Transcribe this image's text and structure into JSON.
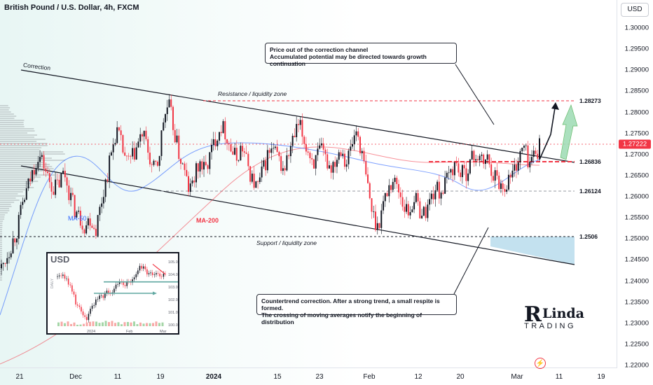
{
  "header": {
    "title": "British Pound / U.S. Dollar, 4h, FXCM"
  },
  "currency_button": "USD",
  "annotations": {
    "top_line1": "Price out of the correction channel",
    "top_line2": "Accumulated potential may be directed towards growth continuation",
    "bottom_line1": "Countertrend correction. After a strong trend, a small respite is formed.",
    "bottom_line2": "The crossing of moving averages notify the beginning of distribution",
    "correction_label": "Correction",
    "resistance_label": "Resistance / liquidity zone",
    "support_label": "Support / liquidity zone",
    "ma50_label": "MA-50",
    "ma200_label": "MA-200"
  },
  "levels": {
    "l1": "1.28273",
    "l2": "1.26836",
    "l3": "1.26124",
    "l4": "1.2506"
  },
  "inset": {
    "title": "USD",
    "side_label": "DAILY",
    "ticks": [
      "105.00",
      "104.00",
      "103.00",
      "102.00",
      "101.00",
      "100.00"
    ],
    "xticks": [
      "2024",
      "Feb",
      "Mar"
    ]
  },
  "logo": {
    "mark": "R",
    "name": "Linda",
    "sub": "TRADING"
  },
  "chart_data": {
    "type": "line",
    "title": "British Pound / U.S. Dollar, 4h, FXCM",
    "x_ticks": [
      "21",
      "Dec",
      "11",
      "19",
      "2024",
      "15",
      "23",
      "Feb",
      "12",
      "20",
      "Mar",
      "11",
      "19"
    ],
    "y_ticks": [
      "1.30000",
      "1.29500",
      "1.29000",
      "1.28500",
      "1.28000",
      "1.27500",
      "1.27000",
      "1.26500",
      "1.26000",
      "1.25500",
      "1.25000",
      "1.24500",
      "1.24000",
      "1.23500",
      "1.23000",
      "1.22500",
      "1.22000"
    ],
    "ylim": [
      1.2195,
      1.3035
    ],
    "current_price": "1.27222",
    "current_price_value": 1.27222,
    "series": [
      {
        "name": "MA-50",
        "color": "#2962ff"
      },
      {
        "name": "MA-200",
        "color": "#f23645"
      }
    ],
    "close_path": [
      1.243,
      1.246,
      1.249,
      1.252,
      1.258,
      1.262,
      1.266,
      1.27,
      1.268,
      1.264,
      1.262,
      1.263,
      1.266,
      1.261,
      1.257,
      1.255,
      1.253,
      1.255,
      1.252,
      1.258,
      1.264,
      1.27,
      1.276,
      1.272,
      1.268,
      1.269,
      1.272,
      1.275,
      1.271,
      1.266,
      1.268,
      1.278,
      1.282,
      1.276,
      1.27,
      1.266,
      1.261,
      1.265,
      1.268,
      1.266,
      1.27,
      1.274,
      1.277,
      1.275,
      1.271,
      1.269,
      1.272,
      1.268,
      1.264,
      1.262,
      1.266,
      1.27,
      1.271,
      1.269,
      1.266,
      1.27,
      1.274,
      1.277,
      1.273,
      1.27,
      1.268,
      1.271,
      1.269,
      1.267,
      1.269,
      1.272,
      1.268,
      1.272,
      1.276,
      1.27,
      1.263,
      1.256,
      1.253,
      1.258,
      1.262,
      1.264,
      1.262,
      1.258,
      1.256,
      1.26,
      1.257,
      1.256,
      1.259,
      1.262,
      1.261,
      1.263,
      1.266,
      1.268,
      1.265,
      1.266,
      1.269,
      1.27,
      1.268,
      1.269,
      1.266,
      1.264,
      1.262,
      1.264,
      1.266,
      1.269,
      1.272,
      1.268,
      1.27,
      1.272
    ],
    "projection_target": 1.28273,
    "inset_usd": {
      "ylim": [
        99.9,
        105.1
      ],
      "values": [
        103.8,
        104.2,
        103.6,
        102.6,
        101.5,
        101.0,
        100.5,
        101.3,
        101.9,
        102.2,
        102.5,
        102.3,
        103.0,
        103.4,
        103.2,
        103.5,
        104.0,
        104.6,
        104.3,
        103.9,
        104.2,
        104.0,
        103.9
      ]
    }
  }
}
